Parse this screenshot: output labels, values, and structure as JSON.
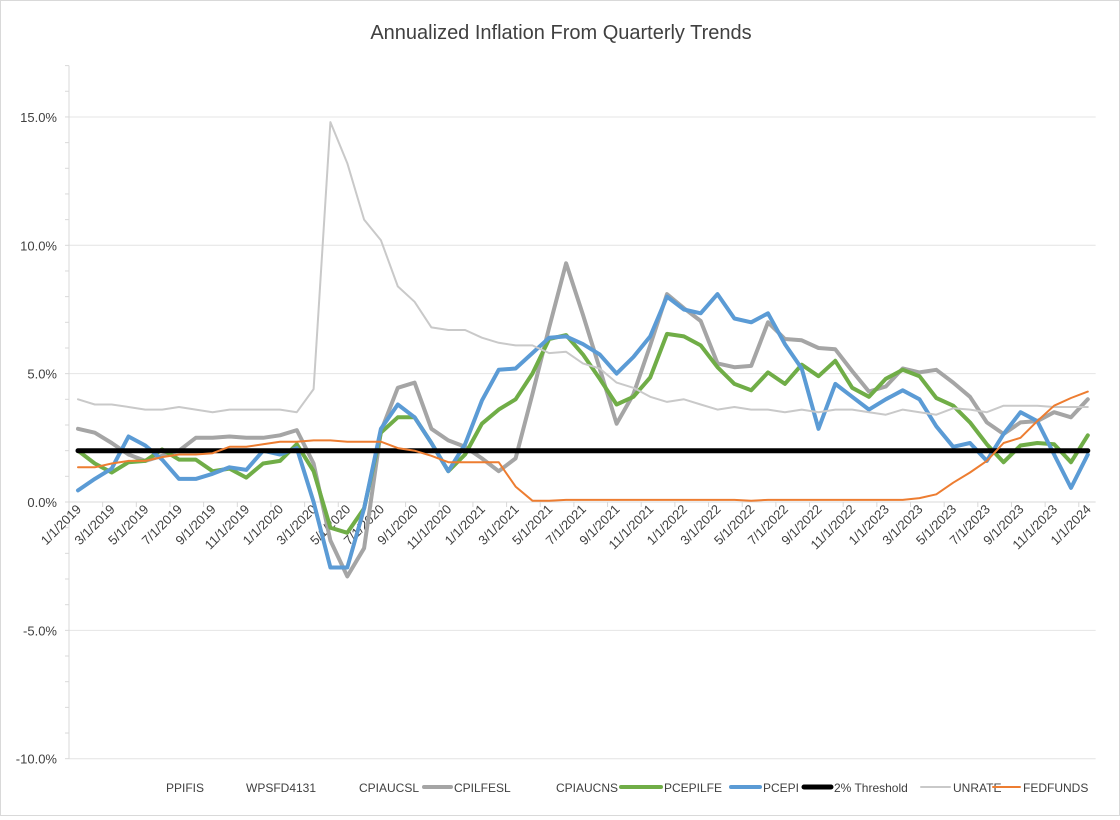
{
  "chart_data": {
    "type": "line",
    "title": "Annualized Inflation From Quarterly Trends",
    "xlabel": "",
    "ylabel": "",
    "ylim": [
      -10,
      17
    ],
    "y_ticks": [
      15,
      10,
      5,
      0,
      -5,
      -10
    ],
    "y_tick_labels": [
      "15.0%",
      "10.0%",
      "5.0%",
      "0.0%",
      "-5.0%",
      "-10.0%"
    ],
    "grid": true,
    "legend_position": "bottom",
    "x_start": "1/1/2019",
    "x_tick_labels": [
      "1/1/2019",
      "3/1/2019",
      "5/1/2019",
      "7/1/2019",
      "9/1/2019",
      "11/1/2019",
      "1/1/2020",
      "3/1/2020",
      "5/1/2020",
      "7/1/2020",
      "9/1/2020",
      "11/1/2020",
      "1/1/2021",
      "3/1/2021",
      "5/1/2021",
      "7/1/2021",
      "9/1/2021",
      "11/1/2021",
      "1/1/2022",
      "3/1/2022",
      "5/1/2022",
      "7/1/2022",
      "9/1/2022",
      "11/1/2022",
      "1/1/2023",
      "3/1/2023",
      "5/1/2023",
      "7/1/2023",
      "9/1/2023",
      "11/1/2023",
      "1/1/2024"
    ],
    "series": [
      {
        "name": "PPIFIS",
        "color": null,
        "values": null
      },
      {
        "name": "WPSFD4131",
        "color": null,
        "values": null
      },
      {
        "name": "CPIAUCSL",
        "color": null,
        "values": null
      },
      {
        "name": "CPILFESL",
        "color": "#a5a5a5",
        "width": 4,
        "values": [
          2.85,
          2.7,
          2.3,
          1.85,
          1.6,
          1.8,
          2.0,
          2.5,
          2.5,
          2.55,
          2.5,
          2.5,
          2.6,
          2.8,
          1.5,
          -1.5,
          -2.9,
          -1.8,
          2.75,
          4.45,
          4.65,
          2.85,
          2.4,
          2.15,
          1.7,
          1.2,
          1.7,
          4.2,
          6.8,
          9.3,
          7.3,
          5.2,
          3.05,
          4.2,
          6.1,
          8.1,
          7.55,
          7.05,
          5.4,
          5.25,
          5.3,
          7.0,
          6.35,
          6.3,
          6.0,
          5.95,
          5.1,
          4.3,
          4.5,
          5.2,
          5.05,
          5.15,
          4.65,
          4.1,
          3.1,
          2.65,
          3.1,
          3.15,
          3.5,
          3.3,
          4.0
        ]
      },
      {
        "name": "CPIAUCNS",
        "color": null,
        "values": null
      },
      {
        "name": "PCEPILFE",
        "color": "#70ad47",
        "width": 4,
        "values": [
          2.0,
          1.5,
          1.15,
          1.55,
          1.6,
          2.05,
          1.65,
          1.65,
          1.2,
          1.3,
          0.95,
          1.5,
          1.6,
          2.25,
          1.2,
          -1.0,
          -1.2,
          -0.25,
          2.7,
          3.3,
          3.3,
          2.3,
          1.2,
          1.85,
          3.05,
          3.6,
          4.0,
          5.0,
          6.35,
          6.5,
          5.75,
          4.8,
          3.8,
          4.1,
          4.85,
          6.55,
          6.45,
          6.1,
          5.25,
          4.6,
          4.35,
          5.05,
          4.6,
          5.35,
          4.9,
          5.5,
          4.45,
          4.1,
          4.8,
          5.15,
          4.9,
          4.05,
          3.75,
          3.1,
          2.25,
          1.55,
          2.2,
          2.3,
          2.25,
          1.55,
          2.6
        ]
      },
      {
        "name": "PCEPI",
        "color": "#5b9bd5",
        "width": 4,
        "values": [
          0.45,
          0.9,
          1.3,
          2.55,
          2.2,
          1.65,
          0.9,
          0.9,
          1.1,
          1.35,
          1.25,
          2.0,
          1.85,
          2.1,
          0.0,
          -2.55,
          -2.55,
          -0.25,
          2.85,
          3.8,
          3.3,
          2.3,
          1.2,
          2.25,
          3.95,
          5.15,
          5.2,
          5.8,
          6.4,
          6.45,
          6.15,
          5.75,
          5.0,
          5.65,
          6.45,
          8.0,
          7.5,
          7.35,
          8.1,
          7.15,
          7.0,
          7.35,
          6.15,
          5.2,
          2.85,
          4.6,
          4.1,
          3.6,
          4.0,
          4.35,
          4.0,
          2.95,
          2.15,
          2.3,
          1.6,
          2.65,
          3.5,
          3.15,
          1.85,
          0.55,
          1.85
        ]
      },
      {
        "name": "2% Threshold",
        "color": "#000000",
        "width": 5,
        "values": [
          2,
          2,
          2,
          2,
          2,
          2,
          2,
          2,
          2,
          2,
          2,
          2,
          2,
          2,
          2,
          2,
          2,
          2,
          2,
          2,
          2,
          2,
          2,
          2,
          2,
          2,
          2,
          2,
          2,
          2,
          2,
          2,
          2,
          2,
          2,
          2,
          2,
          2,
          2,
          2,
          2,
          2,
          2,
          2,
          2,
          2,
          2,
          2,
          2,
          2,
          2,
          2,
          2,
          2,
          2,
          2,
          2,
          2,
          2,
          2,
          2
        ]
      },
      {
        "name": "UNRATE",
        "color": "#c9c9c9",
        "width": 2,
        "values": [
          4.0,
          3.8,
          3.8,
          3.7,
          3.6,
          3.6,
          3.7,
          3.6,
          3.5,
          3.6,
          3.6,
          3.6,
          3.6,
          3.5,
          4.4,
          14.8,
          13.2,
          11.0,
          10.2,
          8.4,
          7.8,
          6.8,
          6.7,
          6.7,
          6.4,
          6.2,
          6.1,
          6.1,
          5.8,
          5.85,
          5.4,
          5.2,
          4.65,
          4.45,
          4.1,
          3.9,
          4.0,
          3.8,
          3.6,
          3.7,
          3.6,
          3.6,
          3.5,
          3.6,
          3.5,
          3.6,
          3.6,
          3.5,
          3.4,
          3.6,
          3.5,
          3.4,
          3.65,
          3.6,
          3.5,
          3.75,
          3.75,
          3.75,
          3.7,
          3.7,
          3.7
        ]
      },
      {
        "name": "FEDFUNDS",
        "color": "#ed7d31",
        "width": 2,
        "values": [
          1.35,
          1.35,
          1.5,
          1.6,
          1.6,
          1.75,
          1.85,
          1.85,
          1.9,
          2.15,
          2.15,
          2.25,
          2.35,
          2.35,
          2.4,
          2.4,
          2.35,
          2.35,
          2.35,
          2.1,
          2.0,
          1.8,
          1.55,
          1.55,
          1.55,
          1.55,
          0.6,
          0.05,
          0.05,
          0.08,
          0.08,
          0.08,
          0.08,
          0.08,
          0.08,
          0.08,
          0.08,
          0.08,
          0.08,
          0.08,
          0.05,
          0.08,
          0.08,
          0.08,
          0.08,
          0.08,
          0.08,
          0.08,
          0.08,
          0.08,
          0.15,
          0.3,
          0.75,
          1.15,
          1.6,
          2.3,
          2.5,
          3.15,
          3.75,
          4.05,
          4.3
        ]
      }
    ]
  }
}
